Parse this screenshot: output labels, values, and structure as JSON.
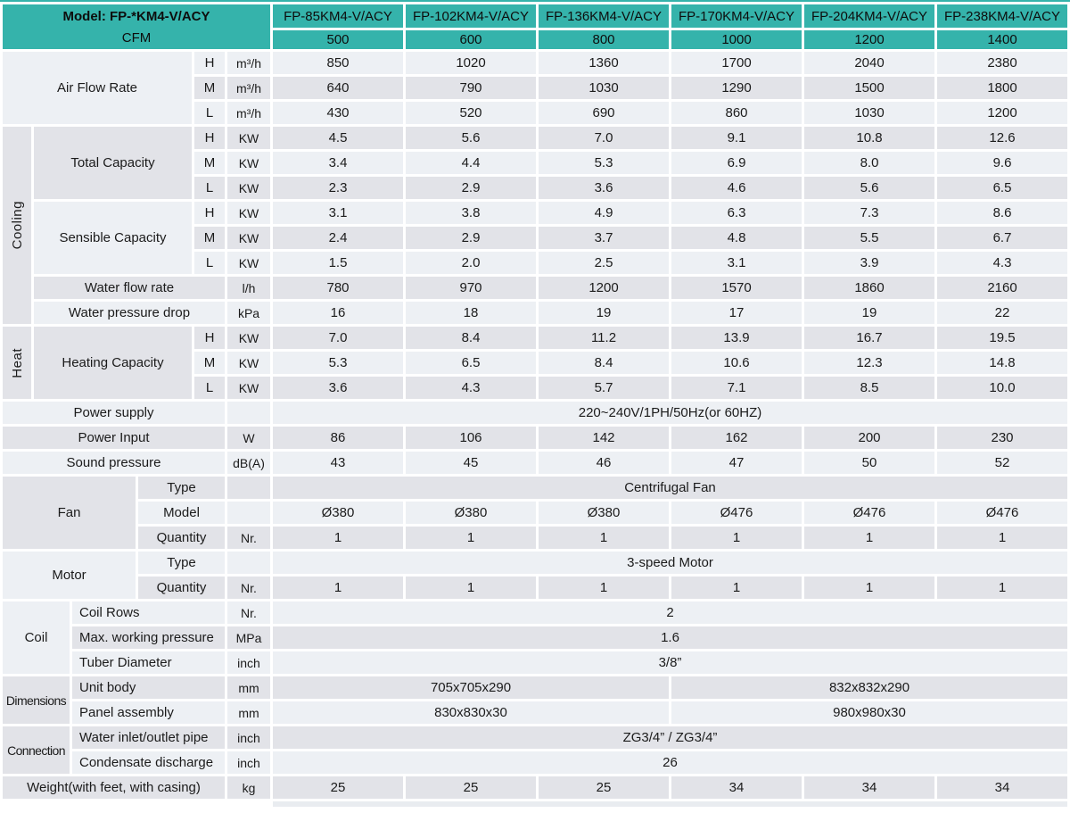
{
  "title": {
    "model": "Model: FP-*KM4-V/ACY",
    "cfm": "CFM"
  },
  "columns": {
    "models": [
      "FP-85KM4-V/ACY",
      "FP-102KM4-V/ACY",
      "FP-136KM4-V/ACY",
      "FP-170KM4-V/ACY",
      "FP-204KM4-V/ACY",
      "FP-238KM4-V/ACY"
    ],
    "cfm": [
      "500",
      "600",
      "800",
      "1000",
      "1200",
      "1400"
    ]
  },
  "groups": {
    "cooling": "Cooling",
    "heat": "Heat",
    "fan": "Fan",
    "motor": "Motor",
    "coil": "Coil",
    "dimensions": "Dimensions",
    "connection": "Connection"
  },
  "rows": [
    {
      "label": "Air Flow Rate",
      "speed": "H",
      "unit": "m³/h",
      "values": [
        "850",
        "1020",
        "1360",
        "1700",
        "2040",
        "2380"
      ]
    },
    {
      "speed": "M",
      "unit": "m³/h",
      "values": [
        "640",
        "790",
        "1030",
        "1290",
        "1500",
        "1800"
      ]
    },
    {
      "speed": "L",
      "unit": "m³/h",
      "values": [
        "430",
        "520",
        "690",
        "860",
        "1030",
        "1200"
      ]
    },
    {
      "label": "Total Capacity",
      "speed": "H",
      "unit": "KW",
      "values": [
        "4.5",
        "5.6",
        "7.0",
        "9.1",
        "10.8",
        "12.6"
      ]
    },
    {
      "speed": "M",
      "unit": "KW",
      "values": [
        "3.4",
        "4.4",
        "5.3",
        "6.9",
        "8.0",
        "9.6"
      ]
    },
    {
      "speed": "L",
      "unit": "KW",
      "values": [
        "2.3",
        "2.9",
        "3.6",
        "4.6",
        "5.6",
        "6.5"
      ]
    },
    {
      "label": "Sensible Capacity",
      "speed": "H",
      "unit": "KW",
      "values": [
        "3.1",
        "3.8",
        "4.9",
        "6.3",
        "7.3",
        "8.6"
      ]
    },
    {
      "speed": "M",
      "unit": "KW",
      "values": [
        "2.4",
        "2.9",
        "3.7",
        "4.8",
        "5.5",
        "6.7"
      ]
    },
    {
      "speed": "L",
      "unit": "KW",
      "values": [
        "1.5",
        "2.0",
        "2.5",
        "3.1",
        "3.9",
        "4.3"
      ]
    },
    {
      "label": "Water flow rate",
      "unit": "l/h",
      "values": [
        "780",
        "970",
        "1200",
        "1570",
        "1860",
        "2160"
      ]
    },
    {
      "label": "Water pressure drop",
      "unit": "kPa",
      "values": [
        "16",
        "18",
        "19",
        "17",
        "19",
        "22"
      ]
    },
    {
      "label": "Heating Capacity",
      "speed": "H",
      "unit": "KW",
      "values": [
        "7.0",
        "8.4",
        "11.2",
        "13.9",
        "16.7",
        "19.5"
      ]
    },
    {
      "speed": "M",
      "unit": "KW",
      "values": [
        "5.3",
        "6.5",
        "8.4",
        "10.6",
        "12.3",
        "14.8"
      ]
    },
    {
      "speed": "L",
      "unit": "KW",
      "values": [
        "3.6",
        "4.3",
        "5.7",
        "7.1",
        "8.5",
        "10.0"
      ]
    },
    {
      "label": "Power supply",
      "unit": "",
      "merged": "220~240V/1PH/50Hz(or 60HZ)"
    },
    {
      "label": "Power Input",
      "unit": "W",
      "values": [
        "86",
        "106",
        "142",
        "162",
        "200",
        "230"
      ]
    },
    {
      "label": "Sound pressure",
      "unit": "dB(A)",
      "values": [
        "43",
        "45",
        "46",
        "47",
        "50",
        "52"
      ]
    },
    {
      "label": "Type",
      "unit": "",
      "merged": "Centrifugal Fan"
    },
    {
      "label": "Model",
      "unit": "",
      "values": [
        "Ø380",
        "Ø380",
        "Ø380",
        "Ø476",
        "Ø476",
        "Ø476"
      ]
    },
    {
      "label": "Quantity",
      "unit": "Nr.",
      "values": [
        "1",
        "1",
        "1",
        "1",
        "1",
        "1"
      ]
    },
    {
      "label": "Type",
      "unit": "",
      "merged": "3-speed Motor"
    },
    {
      "label": "Quantity",
      "unit": "Nr.",
      "values": [
        "1",
        "1",
        "1",
        "1",
        "1",
        "1"
      ]
    },
    {
      "label": "Coil Rows",
      "unit": "Nr.",
      "merged": "2"
    },
    {
      "label": "Max. working pressure",
      "unit": "MPa",
      "merged": "1.6"
    },
    {
      "label": "Tuber Diameter",
      "unit": "inch",
      "merged": "3/8”"
    },
    {
      "label": "Unit body",
      "unit": "mm",
      "halves": [
        "705x705x290",
        "832x832x290"
      ]
    },
    {
      "label": "Panel assembly",
      "unit": "mm",
      "halves": [
        "830x830x30",
        "980x980x30"
      ]
    },
    {
      "label": "Water inlet/outlet pipe",
      "unit": "inch",
      "merged": "ZG3/4” / ZG3/4”"
    },
    {
      "label": "Condensate discharge",
      "unit": "inch",
      "merged": "26"
    },
    {
      "label": "Weight(with feet, with casing)",
      "unit": "kg",
      "values": [
        "25",
        "25",
        "25",
        "34",
        "34",
        "34"
      ]
    }
  ],
  "colors": {
    "header_teal": "#35b3ab",
    "row_light": "#edf0f4",
    "row_dark": "#e2e3e8",
    "label_bg": "#e6e6ec"
  }
}
